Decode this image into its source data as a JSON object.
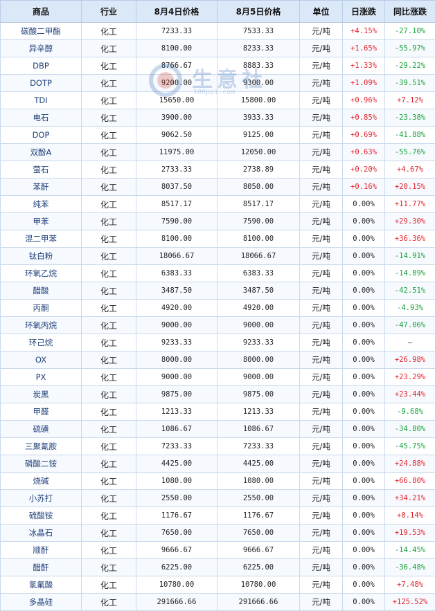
{
  "headers": [
    "商品",
    "行业",
    "8月4日价格",
    "8月5日价格",
    "单位",
    "日涨跌",
    "同比涨跌"
  ],
  "watermark": {
    "brand": "生意社",
    "url": "100ppi.com"
  },
  "rows": [
    {
      "name": "碳酸二甲酯",
      "industry": "化工",
      "p4": "7233.33",
      "p5": "7533.33",
      "unit": "元/吨",
      "daily": "+4.15%",
      "yoy": "-27.10%"
    },
    {
      "name": "异辛醇",
      "industry": "化工",
      "p4": "8100.00",
      "p5": "8233.33",
      "unit": "元/吨",
      "daily": "+1.65%",
      "yoy": "-55.97%"
    },
    {
      "name": "DBP",
      "industry": "化工",
      "p4": "8766.67",
      "p5": "8883.33",
      "unit": "元/吨",
      "daily": "+1.33%",
      "yoy": "-29.22%"
    },
    {
      "name": "DOTP",
      "industry": "化工",
      "p4": "9200.00",
      "p5": "9300.00",
      "unit": "元/吨",
      "daily": "+1.09%",
      "yoy": "-39.51%"
    },
    {
      "name": "TDI",
      "industry": "化工",
      "p4": "15650.00",
      "p5": "15800.00",
      "unit": "元/吨",
      "daily": "+0.96%",
      "yoy": "+7.12%"
    },
    {
      "name": "电石",
      "industry": "化工",
      "p4": "3900.00",
      "p5": "3933.33",
      "unit": "元/吨",
      "daily": "+0.85%",
      "yoy": "-23.38%"
    },
    {
      "name": "DOP",
      "industry": "化工",
      "p4": "9062.50",
      "p5": "9125.00",
      "unit": "元/吨",
      "daily": "+0.69%",
      "yoy": "-41.88%"
    },
    {
      "name": "双酚A",
      "industry": "化工",
      "p4": "11975.00",
      "p5": "12050.00",
      "unit": "元/吨",
      "daily": "+0.63%",
      "yoy": "-55.76%"
    },
    {
      "name": "萤石",
      "industry": "化工",
      "p4": "2733.33",
      "p5": "2738.89",
      "unit": "元/吨",
      "daily": "+0.20%",
      "yoy": "+4.67%"
    },
    {
      "name": "苯酐",
      "industry": "化工",
      "p4": "8037.50",
      "p5": "8050.00",
      "unit": "元/吨",
      "daily": "+0.16%",
      "yoy": "+20.15%"
    },
    {
      "name": "纯苯",
      "industry": "化工",
      "p4": "8517.17",
      "p5": "8517.17",
      "unit": "元/吨",
      "daily": "0.00%",
      "yoy": "+11.77%"
    },
    {
      "name": "甲苯",
      "industry": "化工",
      "p4": "7590.00",
      "p5": "7590.00",
      "unit": "元/吨",
      "daily": "0.00%",
      "yoy": "+29.30%"
    },
    {
      "name": "混二甲苯",
      "industry": "化工",
      "p4": "8100.00",
      "p5": "8100.00",
      "unit": "元/吨",
      "daily": "0.00%",
      "yoy": "+36.36%"
    },
    {
      "name": "钛白粉",
      "industry": "化工",
      "p4": "18066.67",
      "p5": "18066.67",
      "unit": "元/吨",
      "daily": "0.00%",
      "yoy": "-14.91%"
    },
    {
      "name": "环氧乙烷",
      "industry": "化工",
      "p4": "6383.33",
      "p5": "6383.33",
      "unit": "元/吨",
      "daily": "0.00%",
      "yoy": "-14.89%"
    },
    {
      "name": "醋酸",
      "industry": "化工",
      "p4": "3487.50",
      "p5": "3487.50",
      "unit": "元/吨",
      "daily": "0.00%",
      "yoy": "-42.51%"
    },
    {
      "name": "丙酮",
      "industry": "化工",
      "p4": "4920.00",
      "p5": "4920.00",
      "unit": "元/吨",
      "daily": "0.00%",
      "yoy": "-4.93%"
    },
    {
      "name": "环氧丙烷",
      "industry": "化工",
      "p4": "9000.00",
      "p5": "9000.00",
      "unit": "元/吨",
      "daily": "0.00%",
      "yoy": "-47.06%"
    },
    {
      "name": "环己烷",
      "industry": "化工",
      "p4": "9233.33",
      "p5": "9233.33",
      "unit": "元/吨",
      "daily": "0.00%",
      "yoy": "—"
    },
    {
      "name": "OX",
      "industry": "化工",
      "p4": "8000.00",
      "p5": "8000.00",
      "unit": "元/吨",
      "daily": "0.00%",
      "yoy": "+26.98%"
    },
    {
      "name": "PX",
      "industry": "化工",
      "p4": "9000.00",
      "p5": "9000.00",
      "unit": "元/吨",
      "daily": "0.00%",
      "yoy": "+23.29%"
    },
    {
      "name": "炭黑",
      "industry": "化工",
      "p4": "9875.00",
      "p5": "9875.00",
      "unit": "元/吨",
      "daily": "0.00%",
      "yoy": "+23.44%"
    },
    {
      "name": "甲醛",
      "industry": "化工",
      "p4": "1213.33",
      "p5": "1213.33",
      "unit": "元/吨",
      "daily": "0.00%",
      "yoy": "-9.68%"
    },
    {
      "name": "硫磺",
      "industry": "化工",
      "p4": "1086.67",
      "p5": "1086.67",
      "unit": "元/吨",
      "daily": "0.00%",
      "yoy": "-34.80%"
    },
    {
      "name": "三聚氰胺",
      "industry": "化工",
      "p4": "7233.33",
      "p5": "7233.33",
      "unit": "元/吨",
      "daily": "0.00%",
      "yoy": "-45.75%"
    },
    {
      "name": "磷酸二铵",
      "industry": "化工",
      "p4": "4425.00",
      "p5": "4425.00",
      "unit": "元/吨",
      "daily": "0.00%",
      "yoy": "+24.88%"
    },
    {
      "name": "烧碱",
      "industry": "化工",
      "p4": "1080.00",
      "p5": "1080.00",
      "unit": "元/吨",
      "daily": "0.00%",
      "yoy": "+66.80%"
    },
    {
      "name": "小苏打",
      "industry": "化工",
      "p4": "2550.00",
      "p5": "2550.00",
      "unit": "元/吨",
      "daily": "0.00%",
      "yoy": "+34.21%"
    },
    {
      "name": "硫酸铵",
      "industry": "化工",
      "p4": "1176.67",
      "p5": "1176.67",
      "unit": "元/吨",
      "daily": "0.00%",
      "yoy": "+0.14%"
    },
    {
      "name": "冰晶石",
      "industry": "化工",
      "p4": "7650.00",
      "p5": "7650.00",
      "unit": "元/吨",
      "daily": "0.00%",
      "yoy": "+19.53%"
    },
    {
      "name": "顺酐",
      "industry": "化工",
      "p4": "9666.67",
      "p5": "9666.67",
      "unit": "元/吨",
      "daily": "0.00%",
      "yoy": "-14.45%"
    },
    {
      "name": "醋酐",
      "industry": "化工",
      "p4": "6225.00",
      "p5": "6225.00",
      "unit": "元/吨",
      "daily": "0.00%",
      "yoy": "-36.48%"
    },
    {
      "name": "氢氟酸",
      "industry": "化工",
      "p4": "10780.00",
      "p5": "10780.00",
      "unit": "元/吨",
      "daily": "0.00%",
      "yoy": "+7.48%"
    },
    {
      "name": "多晶硅",
      "industry": "化工",
      "p4": "291666.66",
      "p5": "291666.66",
      "unit": "元/吨",
      "daily": "0.00%",
      "yoy": "+125.52%"
    }
  ]
}
